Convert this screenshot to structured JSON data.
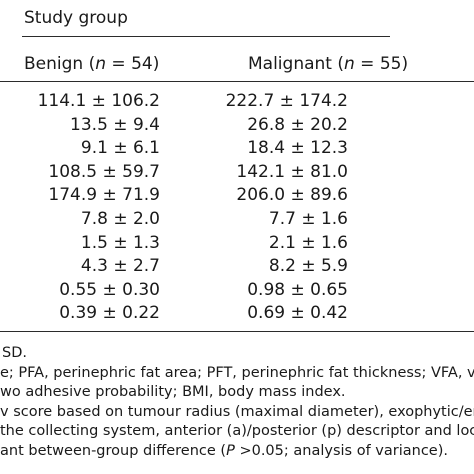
{
  "header": {
    "group_title": "Study group",
    "benign_label_pre": "Benign (",
    "benign_n": "n",
    "benign_label_post": " = 54)",
    "malignant_label_pre": "Malignant (",
    "malignant_n": "n",
    "malignant_label_post": " = 55)"
  },
  "rows": [
    {
      "benign": "114.1 ± 106.2",
      "malignant": "222.7 ± 174.2"
    },
    {
      "benign": "13.5 ± 9.4",
      "malignant": "26.8 ± 20.2"
    },
    {
      "benign": "9.1 ± 6.1",
      "malignant": "18.4 ± 12.3"
    },
    {
      "benign": "108.5 ± 59.7",
      "malignant": "142.1 ± 81.0"
    },
    {
      "benign": "174.9 ± 71.9",
      "malignant": "206.0 ± 89.6"
    },
    {
      "benign": "7.8 ± 2.0",
      "malignant": "7.7 ± 1.6"
    },
    {
      "benign": "1.5 ± 1.3",
      "malignant": "2.1 ± 1.6"
    },
    {
      "benign": "4.3 ± 2.7",
      "malignant": "8.2 ± 5.9"
    },
    {
      "benign": "0.55 ± 0.30",
      "malignant": "0.98 ± 0.65"
    },
    {
      "benign": "0.39 ± 0.22",
      "malignant": "0.69 ± 0.42"
    }
  ],
  "notes": {
    "line1": "SD.",
    "line2": "e; PFA, perinephric fat area; PFT, perinephric fat thickness; VFA, vis",
    "line3": "wo adhesive probability; BMI, body mass index.",
    "line4": "v score based on tumour radius (maximal diameter), exophytic/endoph",
    "line5": "the collecting system, anterior (a)/posterior (p) descriptor and locatio",
    "line6_pre": "ant between-group difference (",
    "line6_p": "P",
    "line6_post": " >0.05; analysis of variance)."
  }
}
